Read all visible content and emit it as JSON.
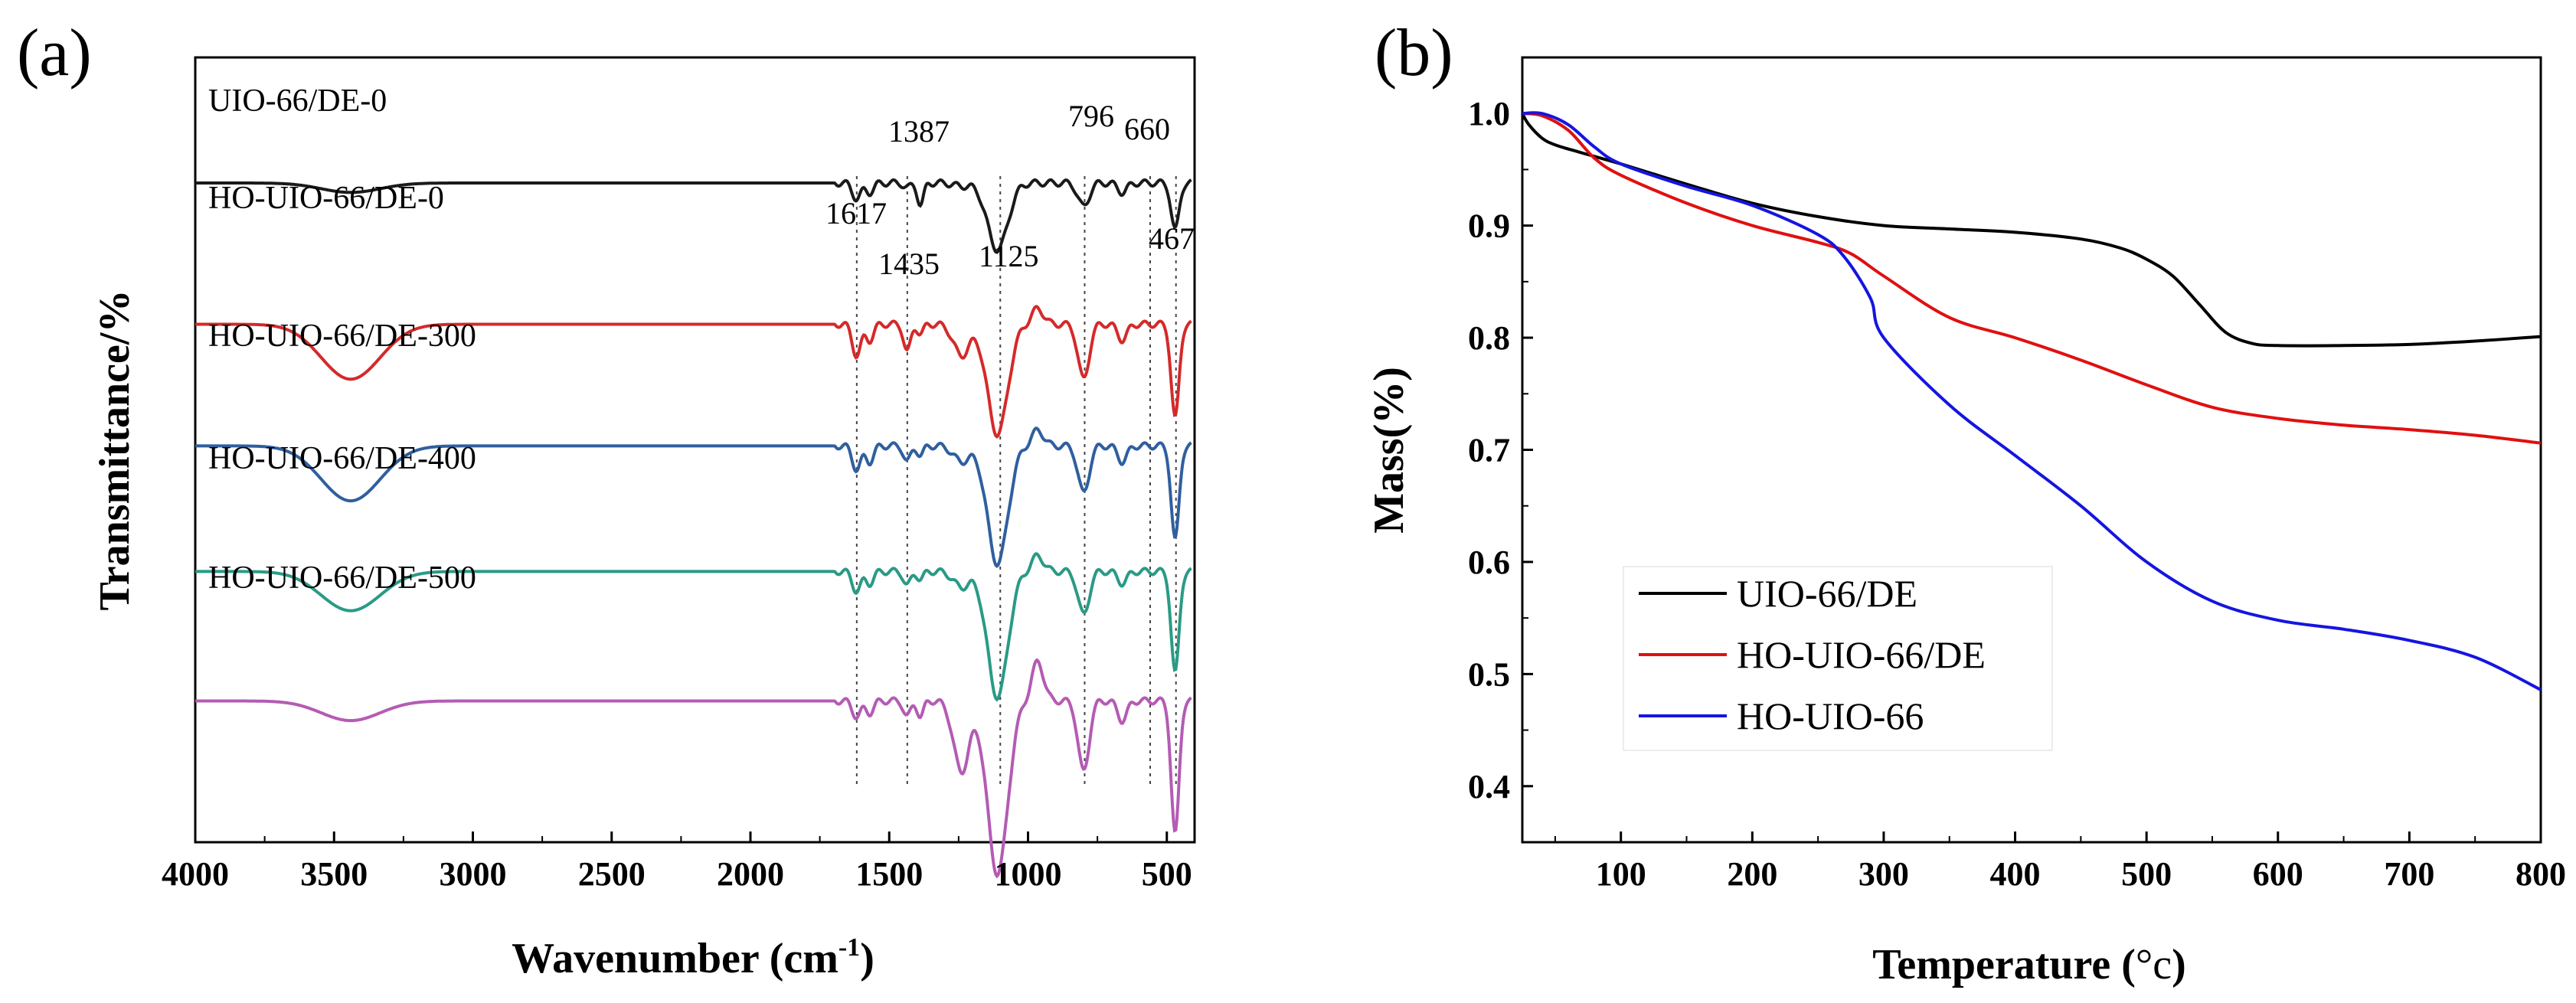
{
  "panels": {
    "a": {
      "label": "(a)",
      "chart_data": {
        "type": "line",
        "title": "",
        "xlabel": "Wavenumber (cm⁻¹)",
        "xlabel_main": "Wavenumber (cm",
        "xlabel_sup": "-1",
        "xlabel_close": ")",
        "ylabel": "Transmittance/%",
        "xlim": [
          4000,
          400
        ],
        "x_reversed": true,
        "x_ticks": [
          4000,
          3500,
          3000,
          2500,
          2000,
          1500,
          1000,
          500
        ],
        "y_ticks_shown": false,
        "series": [
          {
            "name": "UIO-66/DE-0",
            "color": "#1a1a1a",
            "offset": 0.84
          },
          {
            "name": "HO-UIO-66/DE-0",
            "color": "#d42a2a",
            "offset": 0.66
          },
          {
            "name": "HO-UIO-66/DE-300",
            "color": "#2f5f9e",
            "offset": 0.505
          },
          {
            "name": "HO-UIO-66/DE-400",
            "color": "#2a9a86",
            "offset": 0.345
          },
          {
            "name": "HO-UIO-66/DE-500",
            "color": "#b45bb4",
            "offset": 0.18
          }
        ],
        "peak_annotations": [
          {
            "label": "1387",
            "x": 1387
          },
          {
            "label": "796",
            "x": 796
          },
          {
            "label": "660",
            "x": 660
          },
          {
            "label": "1617",
            "x": 1617
          },
          {
            "label": "1435",
            "x": 1435
          },
          {
            "label": "1125",
            "x": 1125
          },
          {
            "label": "467",
            "x": 467
          }
        ],
        "reference_lines_x": [
          1617,
          1435,
          1100,
          796,
          560,
          467
        ]
      }
    },
    "b": {
      "label": "(b)",
      "chart_data": {
        "type": "line",
        "title": "",
        "xlabel": "Temperature (°c)",
        "xlabel_text": "Temperature (",
        "xlabel_unit": "°c",
        "xlabel_close": ")",
        "ylabel": "Mass(%)",
        "xlim": [
          25,
          800
        ],
        "ylim": [
          0.35,
          1.05
        ],
        "x_ticks": [
          100,
          200,
          300,
          400,
          500,
          600,
          700,
          800
        ],
        "y_ticks": [
          "0.4",
          "0.5",
          "0.6",
          "0.7",
          "0.8",
          "0.9",
          "1.0"
        ],
        "legend_position": "lower-left",
        "series": [
          {
            "name": "UIO-66/DE",
            "color": "#000000",
            "x": [
              25,
              30,
              40,
              50,
              70,
              100,
              150,
              200,
              250,
              300,
              350,
              400,
              450,
              480,
              500,
              520,
              540,
              560,
              580,
              600,
              650,
              700,
              750,
              800
            ],
            "y": [
              1.0,
              0.99,
              0.978,
              0.972,
              0.965,
              0.955,
              0.937,
              0.92,
              0.908,
              0.9,
              0.897,
              0.894,
              0.888,
              0.88,
              0.87,
              0.855,
              0.83,
              0.805,
              0.795,
              0.793,
              0.793,
              0.794,
              0.797,
              0.801
            ]
          },
          {
            "name": "HO-UIO-66/DE",
            "color": "#e01010",
            "x": [
              25,
              40,
              60,
              80,
              100,
              150,
              200,
              250,
              275,
              300,
              350,
              400,
              450,
              500,
              550,
              600,
              650,
              700,
              750,
              800
            ],
            "y": [
              1.0,
              0.998,
              0.985,
              0.96,
              0.945,
              0.92,
              0.9,
              0.885,
              0.875,
              0.855,
              0.818,
              0.8,
              0.78,
              0.758,
              0.738,
              0.728,
              0.722,
              0.718,
              0.713,
              0.706
            ]
          },
          {
            "name": "HO-UIO-66",
            "color": "#1515e0",
            "x": [
              25,
              40,
              60,
              80,
              100,
              150,
              200,
              250,
              270,
              290,
              300,
              350,
              400,
              450,
              500,
              550,
              600,
              650,
              700,
              750,
              800
            ],
            "y": [
              1.0,
              1.0,
              0.99,
              0.97,
              0.955,
              0.935,
              0.918,
              0.892,
              0.872,
              0.835,
              0.8,
              0.74,
              0.695,
              0.65,
              0.6,
              0.565,
              0.548,
              0.54,
              0.53,
              0.515,
              0.486
            ]
          }
        ]
      }
    }
  }
}
